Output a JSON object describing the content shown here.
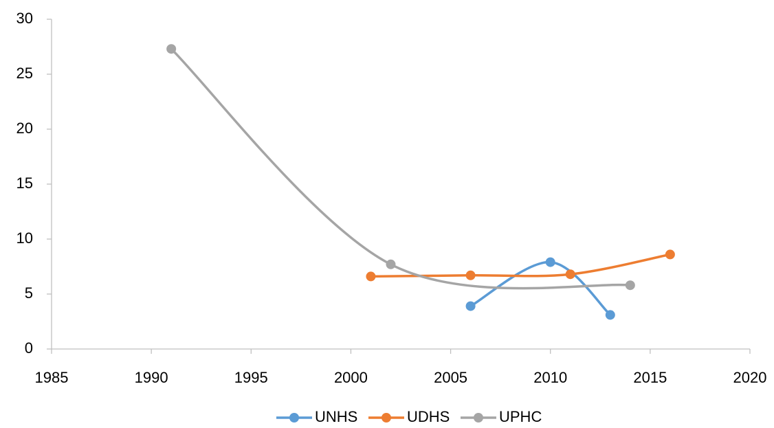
{
  "chart_data": {
    "type": "line",
    "smooth": true,
    "legend": "bottom",
    "xlim": [
      1985,
      2020
    ],
    "xticks": [
      1985,
      1990,
      1995,
      2000,
      2005,
      2010,
      2015,
      2020
    ],
    "ylim": [
      0,
      30
    ],
    "yticks": [
      0,
      5,
      10,
      15,
      20,
      25,
      30
    ],
    "grid": false,
    "series": [
      {
        "name": "UNHS",
        "color": "#5b9bd5",
        "x": [
          2006,
          2010,
          2013
        ],
        "values": [
          3.9,
          7.9,
          3.1
        ]
      },
      {
        "name": "UDHS",
        "color": "#ed7d31",
        "x": [
          2001,
          2006,
          2011,
          2016
        ],
        "values": [
          6.6,
          6.7,
          6.8,
          8.6
        ]
      },
      {
        "name": "UPHC",
        "color": "#a5a5a5",
        "x": [
          1991,
          2002,
          2014
        ],
        "values": [
          27.3,
          7.7,
          5.8
        ]
      }
    ]
  }
}
